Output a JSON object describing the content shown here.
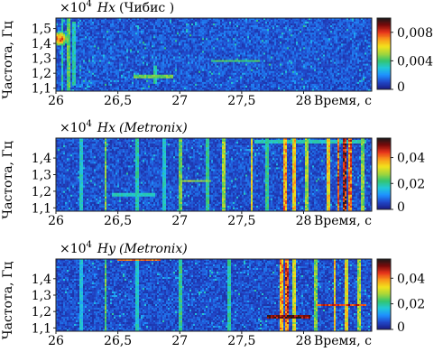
{
  "chart_data": [
    {
      "type": "heatmap",
      "panel_label_prefix": "×10",
      "panel_label_exponent": "4",
      "channel": "Hx",
      "instrument": "(Чибис )",
      "instrument_italic": false,
      "ylabel": "Частота, Гц",
      "xlabel": "Время, с",
      "x_ticks": [
        "26",
        "26,5",
        "27",
        "27,5",
        "28"
      ],
      "x_tick_values": [
        26,
        26.5,
        27,
        27.5,
        28
      ],
      "y_ticks": [
        "1,5",
        "1,4",
        "1,3",
        "1,2",
        "1,1"
      ],
      "y_tick_values": [
        1.5,
        1.4,
        1.3,
        1.2,
        1.1
      ],
      "xlim": [
        26,
        28.55
      ],
      "ylim": [
        1.08,
        1.57
      ],
      "colorbar_ticks": [
        "0,008",
        "0,004",
        "0"
      ],
      "colorbar_values": [
        0.008,
        0.004,
        0
      ],
      "colorbar_range": [
        0,
        0.01
      ],
      "colormap": [
        "#1a1a80",
        "#2147c8",
        "#1e90ff",
        "#21c8d8",
        "#34c46e",
        "#a6d63a",
        "#f2e21c",
        "#f99a1a",
        "#e8341c",
        "#7a0a0a",
        "#1a1a1a"
      ],
      "noise_level": 0.0014,
      "features": [
        {
          "kind": "vertical",
          "x": 26.05,
          "y0": 1.08,
          "y1": 1.57,
          "value": 0.004
        },
        {
          "kind": "vertical",
          "x": 26.1,
          "y0": 1.08,
          "y1": 1.57,
          "value": 0.005
        },
        {
          "kind": "vertical",
          "x": 26.15,
          "y0": 1.12,
          "y1": 1.55,
          "value": 0.004
        },
        {
          "kind": "blob",
          "x": 26.03,
          "y": 1.43,
          "dx": 0.06,
          "dy": 0.05,
          "value": 0.009
        },
        {
          "kind": "vertical",
          "x": 26.8,
          "y0": 1.13,
          "y1": 1.25,
          "value": 0.004
        },
        {
          "kind": "horizontal",
          "y": 1.18,
          "x0": 26.62,
          "x1": 26.95,
          "value": 0.005
        },
        {
          "kind": "horizontal",
          "y": 1.28,
          "x0": 27.25,
          "x1": 27.65,
          "value": 0.0045
        }
      ]
    },
    {
      "type": "heatmap",
      "panel_label_prefix": "×10",
      "panel_label_exponent": "4",
      "channel": "Hx",
      "instrument": "(Metronix)",
      "instrument_italic": true,
      "ylabel": "Частота, Гц",
      "xlabel": "Время, с",
      "x_ticks": [
        "26",
        "26,5",
        "27",
        "27,5",
        "28"
      ],
      "x_tick_values": [
        26,
        26.5,
        27,
        27.5,
        28
      ],
      "y_ticks": [
        "1,4",
        "1,3",
        "1,2",
        "1,1"
      ],
      "y_tick_values": [
        1.4,
        1.3,
        1.2,
        1.1
      ],
      "xlim": [
        26,
        28.55
      ],
      "ylim": [
        1.08,
        1.52
      ],
      "colorbar_ticks": [
        "0,04",
        "0,02",
        "0"
      ],
      "colorbar_values": [
        0.04,
        0.02,
        0
      ],
      "colorbar_range": [
        0,
        0.055
      ],
      "colormap": [
        "#1a1a80",
        "#2147c8",
        "#1e90ff",
        "#21c8d8",
        "#34c46e",
        "#a6d63a",
        "#f2e21c",
        "#f99a1a",
        "#e8341c",
        "#7a0a0a",
        "#1a1a1a"
      ],
      "noise_level": 0.007,
      "features": [
        {
          "kind": "vertical",
          "x": 26.2,
          "y0": 1.08,
          "y1": 1.52,
          "value": 0.02
        },
        {
          "kind": "vertical",
          "x": 26.4,
          "y0": 1.08,
          "y1": 1.52,
          "value": 0.03
        },
        {
          "kind": "vertical",
          "x": 26.65,
          "y0": 1.08,
          "y1": 1.52,
          "value": 0.022
        },
        {
          "kind": "vertical",
          "x": 26.87,
          "y0": 1.08,
          "y1": 1.52,
          "value": 0.02
        },
        {
          "kind": "vertical",
          "x": 27.0,
          "y0": 1.08,
          "y1": 1.52,
          "value": 0.028
        },
        {
          "kind": "vertical",
          "x": 27.22,
          "y0": 1.08,
          "y1": 1.52,
          "value": 0.024
        },
        {
          "kind": "vertical",
          "x": 27.35,
          "y0": 1.08,
          "y1": 1.52,
          "value": 0.032
        },
        {
          "kind": "vertical",
          "x": 27.58,
          "y0": 1.08,
          "y1": 1.52,
          "value": 0.038
        },
        {
          "kind": "vertical",
          "x": 27.7,
          "y0": 1.08,
          "y1": 1.52,
          "value": 0.025
        },
        {
          "kind": "vertical",
          "x": 27.85,
          "y0": 1.08,
          "y1": 1.52,
          "value": 0.044
        },
        {
          "kind": "vertical",
          "x": 27.92,
          "y0": 1.08,
          "y1": 1.52,
          "value": 0.04
        },
        {
          "kind": "vertical",
          "x": 28.02,
          "y0": 1.08,
          "y1": 1.52,
          "value": 0.032
        },
        {
          "kind": "vertical",
          "x": 28.2,
          "y0": 1.08,
          "y1": 1.52,
          "value": 0.04
        },
        {
          "kind": "vertical",
          "x": 28.28,
          "y0": 1.08,
          "y1": 1.52,
          "value": 0.05
        },
        {
          "kind": "vertical",
          "x": 28.33,
          "y0": 1.08,
          "y1": 1.52,
          "value": 0.056
        },
        {
          "kind": "vertical",
          "x": 28.38,
          "y0": 1.08,
          "y1": 1.52,
          "value": 0.048
        },
        {
          "kind": "vertical",
          "x": 28.48,
          "y0": 1.08,
          "y1": 1.52,
          "value": 0.03
        },
        {
          "kind": "horizontal",
          "y": 1.18,
          "x0": 26.45,
          "x1": 26.8,
          "value": 0.02
        },
        {
          "kind": "horizontal",
          "y": 1.26,
          "x0": 27.0,
          "x1": 27.25,
          "value": 0.03
        },
        {
          "kind": "horizontal",
          "y": 1.5,
          "x0": 27.6,
          "x1": 28.5,
          "value": 0.02
        }
      ]
    },
    {
      "type": "heatmap",
      "panel_label_prefix": "×10",
      "panel_label_exponent": "4",
      "channel": "Hy",
      "instrument": "(Metronix)",
      "instrument_italic": true,
      "ylabel": "Частота, Гц",
      "xlabel": "Время, с",
      "x_ticks": [
        "26",
        "26,5",
        "27",
        "27,5",
        "28"
      ],
      "x_tick_values": [
        26,
        26.5,
        27,
        27.5,
        28
      ],
      "y_ticks": [
        "1,4",
        "1,3",
        "1,2",
        "1,1"
      ],
      "y_tick_values": [
        1.4,
        1.3,
        1.2,
        1.1
      ],
      "xlim": [
        26,
        28.55
      ],
      "ylim": [
        1.08,
        1.52
      ],
      "colorbar_ticks": [
        "0,04",
        "0,02",
        "0"
      ],
      "colorbar_values": [
        0.04,
        0.02,
        0
      ],
      "colorbar_range": [
        0,
        0.055
      ],
      "colormap": [
        "#1a1a80",
        "#2147c8",
        "#1e90ff",
        "#21c8d8",
        "#34c46e",
        "#a6d63a",
        "#f2e21c",
        "#f99a1a",
        "#e8341c",
        "#7a0a0a",
        "#1a1a1a"
      ],
      "noise_level": 0.007,
      "features": [
        {
          "kind": "vertical",
          "x": 26.2,
          "y0": 1.08,
          "y1": 1.52,
          "value": 0.018
        },
        {
          "kind": "vertical",
          "x": 26.4,
          "y0": 1.08,
          "y1": 1.52,
          "value": 0.028
        },
        {
          "kind": "vertical",
          "x": 26.65,
          "y0": 1.08,
          "y1": 1.52,
          "value": 0.02
        },
        {
          "kind": "vertical",
          "x": 27.0,
          "y0": 1.08,
          "y1": 1.52,
          "value": 0.024
        },
        {
          "kind": "vertical",
          "x": 27.4,
          "y0": 1.08,
          "y1": 1.52,
          "value": 0.022
        },
        {
          "kind": "vertical",
          "x": 27.82,
          "y0": 1.08,
          "y1": 1.52,
          "value": 0.045
        },
        {
          "kind": "vertical",
          "x": 27.87,
          "y0": 1.08,
          "y1": 1.52,
          "value": 0.05
        },
        {
          "kind": "vertical",
          "x": 27.92,
          "y0": 1.08,
          "y1": 1.52,
          "value": 0.036
        },
        {
          "kind": "vertical",
          "x": 28.1,
          "y0": 1.08,
          "y1": 1.52,
          "value": 0.03
        },
        {
          "kind": "vertical",
          "x": 28.25,
          "y0": 1.08,
          "y1": 1.52,
          "value": 0.04
        },
        {
          "kind": "vertical",
          "x": 28.35,
          "y0": 1.08,
          "y1": 1.52,
          "value": 0.038
        },
        {
          "kind": "vertical",
          "x": 28.45,
          "y0": 1.08,
          "y1": 1.52,
          "value": 0.032
        },
        {
          "kind": "horizontal",
          "y": 1.515,
          "x0": 26.5,
          "x1": 26.85,
          "value": 0.045
        },
        {
          "kind": "horizontal",
          "y": 1.17,
          "x0": 27.7,
          "x1": 28.05,
          "value": 0.056
        },
        {
          "kind": "horizontal",
          "y": 1.24,
          "x0": 28.1,
          "x1": 28.5,
          "value": 0.05
        }
      ]
    }
  ]
}
